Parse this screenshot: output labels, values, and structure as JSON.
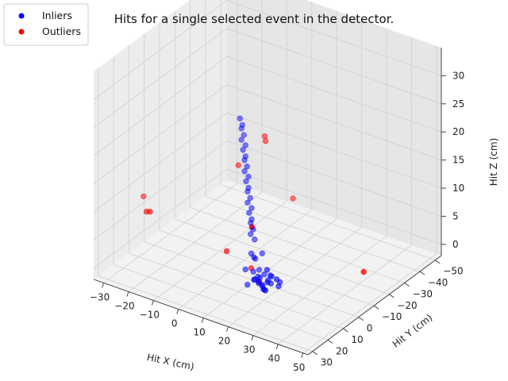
{
  "chart_data": {
    "type": "scatter",
    "projection": "3d",
    "title": "Hits for a single selected event in the detector.",
    "xlabel": "Hit X (cm)",
    "ylabel": "Hit Y (cm)",
    "zlabel": "Hit Z (cm)",
    "x_ticks": [
      -30,
      -20,
      -10,
      0,
      10,
      20,
      30,
      40,
      50
    ],
    "y_ticks": [
      -50,
      -40,
      -30,
      -20,
      -10,
      0,
      10,
      20,
      30
    ],
    "z_ticks": [
      0,
      5,
      10,
      15,
      20,
      25,
      30
    ],
    "xlim": [
      -34,
      52
    ],
    "ylim": [
      -54,
      33
    ],
    "zlim": [
      -2,
      35
    ],
    "grid": true,
    "legend_position": "top-left",
    "series": [
      {
        "name": "Inliers",
        "color": "#0000ff",
        "points": [
          [
            20,
            10,
            0
          ],
          [
            21,
            11,
            0.3
          ],
          [
            19,
            9,
            0.2
          ],
          [
            22,
            12,
            0.5
          ],
          [
            20,
            11,
            1
          ],
          [
            21,
            9,
            1.2
          ],
          [
            18,
            10,
            0.8
          ],
          [
            23,
            10,
            1.5
          ],
          [
            20,
            13,
            2
          ],
          [
            19,
            12,
            2.5
          ],
          [
            22,
            8,
            2.2
          ],
          [
            21,
            14,
            3
          ],
          [
            20,
            7,
            1
          ],
          [
            17,
            11,
            1.5
          ],
          [
            24,
            12,
            3.5
          ],
          [
            19,
            15,
            4
          ],
          [
            22,
            16,
            5
          ],
          [
            18,
            13,
            6
          ],
          [
            21,
            17,
            7
          ],
          [
            20,
            18,
            8
          ],
          [
            15,
            8,
            0.5
          ],
          [
            26,
            9,
            2
          ],
          [
            23,
            5,
            0
          ],
          [
            16,
            14,
            1
          ],
          [
            24,
            16,
            4.5
          ],
          [
            19,
            6,
            2.5
          ],
          [
            21,
            3,
            0.5
          ],
          [
            25,
            19,
            9
          ],
          [
            14,
            12,
            3
          ],
          [
            22,
            19,
            11
          ],
          [
            21,
            20,
            12
          ],
          [
            22,
            20,
            13
          ],
          [
            21,
            20,
            14
          ],
          [
            22,
            21,
            15
          ],
          [
            21,
            21,
            16
          ],
          [
            22,
            21,
            17
          ],
          [
            21,
            22,
            18
          ],
          [
            22,
            22,
            19
          ],
          [
            21,
            22,
            20
          ],
          [
            22,
            23,
            21
          ],
          [
            21,
            23,
            22
          ],
          [
            22,
            23,
            23
          ],
          [
            21,
            24,
            24
          ],
          [
            22,
            24,
            25
          ],
          [
            21,
            24,
            26
          ],
          [
            22,
            25,
            27
          ],
          [
            21,
            25,
            28
          ],
          [
            22,
            25,
            29
          ],
          [
            21,
            26,
            30
          ],
          [
            22,
            26,
            31
          ],
          [
            21,
            26,
            32
          ],
          [
            22,
            27,
            33
          ],
          [
            21,
            27,
            34
          ]
        ]
      },
      {
        "name": "Outliers",
        "color": "#ff0000",
        "points": [
          [
            -30,
            5,
            5
          ],
          [
            -28,
            6,
            5.5
          ],
          [
            -22,
            20,
            12
          ],
          [
            -4,
            -5,
            0
          ],
          [
            -8,
            -28,
            -1
          ],
          [
            12,
            5,
            1.5
          ],
          [
            17,
            8,
            0.5
          ],
          [
            43,
            -18,
            1
          ],
          [
            26,
            19,
            30
          ],
          [
            27,
            20,
            29.5
          ],
          [
            13,
            15,
            22
          ],
          [
            38,
            20,
            21
          ]
        ]
      }
    ]
  }
}
